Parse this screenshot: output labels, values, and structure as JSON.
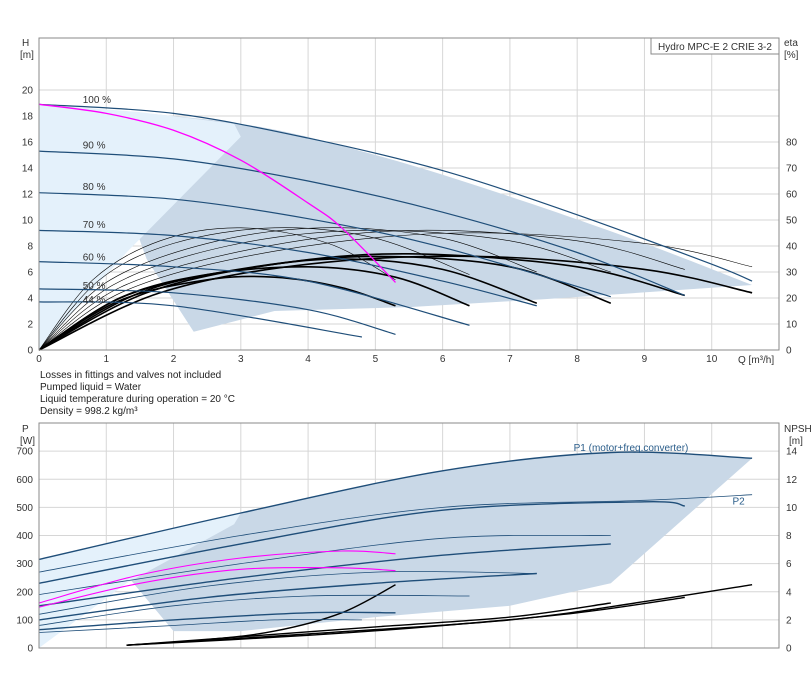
{
  "chart_data": [
    {
      "type": "line",
      "title": "Hydro MPC-E 2 CRIE 3-2",
      "xlabel": "Q [m³/h]",
      "ylabel": "H",
      "ylabel_unit": "[m]",
      "y2label": "eta",
      "y2label_unit": "[%]",
      "xlim": [
        0,
        11
      ],
      "ylim": [
        0,
        24
      ],
      "y2lim": [
        0,
        120
      ],
      "grid": true,
      "x_ticks": [
        0,
        1,
        2,
        3,
        4,
        5,
        6,
        7,
        8,
        9,
        10
      ],
      "y_ticks": [
        0,
        2,
        4,
        6,
        8,
        10,
        12,
        14,
        16,
        18,
        20
      ],
      "y2_ticks": [
        0,
        10,
        20,
        30,
        40,
        50,
        60,
        70,
        80
      ],
      "colors": {
        "band_light": "#e4f1fb",
        "band": "#c9d8e7",
        "curve": "#1f4e79",
        "system": "#ff00ff",
        "eta": "#000000"
      },
      "speed_labels": [
        {
          "text": "100 %",
          "x": 0.65,
          "y": 19.0
        },
        {
          "text": "90 %",
          "x": 0.65,
          "y": 15.5
        },
        {
          "text": "80 %",
          "x": 0.65,
          "y": 12.3
        },
        {
          "text": "70 %",
          "x": 0.65,
          "y": 9.4
        },
        {
          "text": "60 %",
          "x": 0.65,
          "y": 6.9
        },
        {
          "text": "50 %",
          "x": 0.65,
          "y": 4.7
        },
        {
          "text": "44 %",
          "x": 0.65,
          "y": 3.6
        }
      ],
      "band_upper": {
        "x": [
          0,
          3.0,
          5.0,
          7.0,
          9.0,
          10.6
        ],
        "y": [
          18.9,
          17.4,
          15.0,
          11.8,
          8.2,
          5.0
        ]
      },
      "band_lower": {
        "x": [
          0,
          0.9,
          1.6,
          2.3,
          3.5,
          5.5,
          7.5,
          10.6
        ],
        "y": [
          18.9,
          17.0,
          7.0,
          1.4,
          3.0,
          3.3,
          3.9,
          5.0
        ]
      },
      "band_light_region": {
        "x": [
          0,
          1.5,
          2.9,
          3.0,
          1.3,
          0
        ],
        "y": [
          18.9,
          18.3,
          17.4,
          16.4,
          7.5,
          0
        ]
      },
      "series": [
        {
          "name": "",
          "x": [
            0,
            2,
            4,
            6,
            8,
            10,
            10.6
          ],
          "y": [
            18.9,
            18.2,
            16.3,
            13.8,
            10.4,
            6.6,
            5.3
          ]
        },
        {
          "name": "",
          "x": [
            0,
            2,
            4,
            6,
            8,
            9.6
          ],
          "y": [
            15.3,
            14.7,
            13.0,
            10.6,
            7.5,
            4.2
          ]
        },
        {
          "name": "",
          "x": [
            0,
            2,
            4,
            6,
            8.5
          ],
          "y": [
            12.1,
            11.6,
            10.1,
            7.9,
            4.1
          ]
        },
        {
          "name": "",
          "x": [
            0,
            2,
            4,
            6,
            7.4
          ],
          "y": [
            9.2,
            8.8,
            7.5,
            5.3,
            3.4
          ]
        },
        {
          "name": "",
          "x": [
            0,
            2,
            4,
            6.4
          ],
          "y": [
            6.8,
            6.4,
            5.3,
            1.9
          ]
        },
        {
          "name": "",
          "x": [
            0,
            2,
            4,
            5.3
          ],
          "y": [
            4.7,
            4.4,
            3.1,
            1.2
          ]
        },
        {
          "name": "",
          "x": [
            0,
            2,
            4.8
          ],
          "y": [
            3.7,
            3.4,
            1.0
          ]
        },
        {
          "name": "",
          "x": [
            0,
            1,
            2,
            3,
            4,
            4.5,
            5.3
          ],
          "y": [
            18.9,
            18.2,
            16.9,
            14.6,
            11.3,
            9.4,
            5.2
          ],
          "role": "system"
        }
      ],
      "eta_curves": [
        {
          "x": [
            0,
            1.2,
            2.5,
            3.5,
            4.5,
            5.3
          ],
          "y": [
            0,
            19,
            27,
            28,
            24,
            17
          ]
        },
        {
          "x": [
            0,
            1.2,
            2.5,
            4.0,
            5.3,
            6.4
          ],
          "y": [
            0,
            20,
            29,
            32,
            28,
            17
          ]
        },
        {
          "x": [
            0,
            1.3,
            3.0,
            4.5,
            6.0,
            7.4
          ],
          "y": [
            0,
            21,
            31,
            35,
            31,
            18
          ]
        },
        {
          "x": [
            0,
            1.5,
            3.2,
            5.0,
            7.0,
            8.5
          ],
          "y": [
            0,
            22,
            32,
            36,
            32,
            18
          ]
        },
        {
          "x": [
            0,
            1.6,
            3.5,
            5.5,
            8.0,
            9.6
          ],
          "y": [
            0,
            22,
            33,
            37,
            32,
            21
          ]
        },
        {
          "x": [
            0,
            1.8,
            4.0,
            6.5,
            9.0,
            10.6
          ],
          "y": [
            0,
            22,
            33,
            36,
            31,
            22
          ]
        },
        {
          "x": [
            0,
            0.8,
            1.8,
            3.0,
            4.3,
            5.3
          ],
          "y": [
            0,
            27,
            42,
            47,
            41,
            27
          ]
        },
        {
          "x": [
            0,
            0.9,
            2.0,
            3.5,
            5.0,
            6.4
          ],
          "y": [
            0,
            27,
            41,
            47,
            43,
            29
          ]
        },
        {
          "x": [
            0,
            1.0,
            2.5,
            4.2,
            6.0,
            7.4
          ],
          "y": [
            0,
            26,
            41,
            47,
            43,
            30
          ]
        },
        {
          "x": [
            0,
            1.1,
            2.8,
            4.8,
            7.0,
            8.5
          ],
          "y": [
            0,
            25,
            40,
            46,
            42,
            30
          ]
        },
        {
          "x": [
            0,
            1.2,
            3.2,
            5.5,
            8.0,
            9.6
          ],
          "y": [
            0,
            24,
            39,
            46,
            42,
            31
          ]
        },
        {
          "x": [
            0,
            1.3,
            3.5,
            6.2,
            9.0,
            10.6
          ],
          "y": [
            0,
            23,
            38,
            45,
            41,
            32
          ]
        }
      ]
    },
    {
      "type": "line",
      "xlabel": "",
      "ylabel": "P",
      "ylabel_unit": "[W]",
      "y2label": "NPSH",
      "y2label_unit": "[m]",
      "xlim": [
        0,
        11
      ],
      "ylim": [
        0,
        800
      ],
      "y2lim": [
        0,
        16
      ],
      "grid": true,
      "y_ticks": [
        0,
        100,
        200,
        300,
        400,
        500,
        600,
        700
      ],
      "y2_ticks": [
        0,
        2,
        4,
        6,
        8,
        10,
        12,
        14
      ],
      "annotations": [
        {
          "text": "P1 (motor+freq.converter)",
          "x": 8.8,
          "y": 700
        },
        {
          "text": "P2",
          "x": 10.4,
          "y": 510
        }
      ],
      "band_upper": {
        "x": [
          0,
          3.0,
          6.0,
          8.5,
          10.6
        ],
        "y": [
          315,
          480,
          630,
          695,
          675
        ]
      },
      "band_lower": {
        "x": [
          0,
          1.3,
          2.0,
          3.0,
          5.0,
          7.0,
          8.5,
          10.6
        ],
        "y": [
          315,
          260,
          60,
          60,
          110,
          150,
          230,
          675
        ]
      },
      "band_light_region": {
        "x": [
          0,
          3.0,
          2.9,
          1.3,
          0
        ],
        "y": [
          315,
          480,
          440,
          230,
          0
        ]
      },
      "series": [
        {
          "name": "P1 (motor+freq.converter)",
          "x": [
            0,
            3,
            6,
            8.5,
            10.6
          ],
          "y": [
            315,
            480,
            630,
            695,
            675
          ]
        },
        {
          "name": "",
          "x": [
            0,
            3,
            6,
            9,
            10.6
          ],
          "y": [
            270,
            400,
            500,
            525,
            545
          ]
        },
        {
          "name": "",
          "x": [
            0,
            3,
            6,
            9,
            9.6
          ],
          "y": [
            230,
            370,
            490,
            520,
            505
          ]
        },
        {
          "name": "",
          "x": [
            0,
            3,
            6,
            8.5
          ],
          "y": [
            190,
            300,
            390,
            400
          ]
        },
        {
          "name": "",
          "x": [
            0,
            3,
            6,
            8.5
          ],
          "y": [
            150,
            250,
            330,
            370
          ]
        },
        {
          "name": "",
          "x": [
            0,
            2.5,
            5,
            7.4
          ],
          "y": [
            120,
            220,
            270,
            265
          ]
        },
        {
          "name": "",
          "x": [
            0,
            2.5,
            5,
            7.4
          ],
          "y": [
            100,
            180,
            230,
            265
          ]
        },
        {
          "name": "",
          "x": [
            0,
            2,
            4,
            6.4
          ],
          "y": [
            80,
            150,
            185,
            185
          ]
        },
        {
          "name": "",
          "x": [
            0,
            2,
            4,
            5.3
          ],
          "y": [
            65,
            100,
            125,
            125
          ]
        },
        {
          "name": "",
          "x": [
            0,
            2,
            3.5,
            4.8
          ],
          "y": [
            55,
            80,
            100,
            100
          ]
        },
        {
          "name": "",
          "x": [
            0,
            1.5,
            3,
            4.5,
            5.3
          ],
          "y": [
            160,
            260,
            320,
            345,
            335
          ],
          "role": "system"
        },
        {
          "name": "",
          "x": [
            0,
            1.5,
            3,
            4.5,
            5.3
          ],
          "y": [
            145,
            230,
            280,
            285,
            275
          ],
          "role": "system"
        }
      ],
      "npsh_curves": [
        {
          "x": [
            1.3,
            2.5,
            3.5,
            4.5,
            5.3
          ],
          "y": [
            0.2,
            0.6,
            1.2,
            2.5,
            4.5
          ]
        },
        {
          "x": [
            1.3,
            3.0,
            5.0,
            7.0,
            8.5
          ],
          "y": [
            0.2,
            0.8,
            1.5,
            2.2,
            3.2
          ]
        },
        {
          "x": [
            1.3,
            4.0,
            6.0,
            8.0,
            9.6
          ],
          "y": [
            0.2,
            0.9,
            1.6,
            2.5,
            3.6
          ]
        },
        {
          "x": [
            1.3,
            4.0,
            7.0,
            9.0,
            10.6
          ],
          "y": [
            0.2,
            1.0,
            2.0,
            3.3,
            4.5
          ]
        }
      ]
    }
  ],
  "notes": [
    "Losses in fittings and valves not included",
    "Pumped liquid = Water",
    "Liquid temperature during operation = 20 °C",
    "Density = 998.2 kg/m³"
  ]
}
